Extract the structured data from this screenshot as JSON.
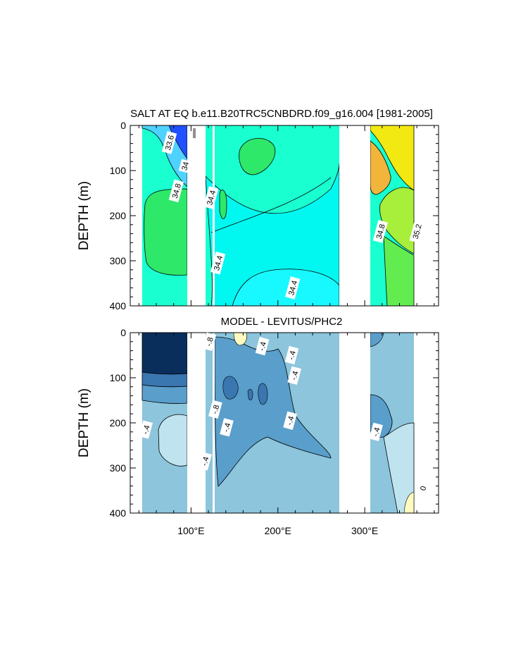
{
  "chart_data": [
    {
      "type": "heatmap",
      "title": "SALT AT EQ b.e11.B20TRC5CNBDRD.f09_g16.004 [1981-2005]",
      "xlabel": "",
      "ylabel": "DEPTH (m)",
      "xlim": [
        30,
        385
      ],
      "ylim": [
        400,
        0
      ],
      "y_reversed": true,
      "xticks": [
        {
          "value": 100,
          "label": "100°E"
        },
        {
          "value": 200,
          "label": "200°E"
        },
        {
          "value": 300,
          "label": "300°E"
        }
      ],
      "yticks": [
        0,
        100,
        200,
        300,
        400
      ],
      "grid": false,
      "land_gaps_lon": [
        [
          98,
          118
        ],
        [
          278,
          313
        ]
      ],
      "contour_labels": [
        {
          "text": "33.6",
          "lon": 75,
          "depth": 38
        },
        {
          "text": "34",
          "lon": 93,
          "depth": 90
        },
        {
          "text": "34.8",
          "lon": 83,
          "depth": 145
        },
        {
          "text": "34.4",
          "lon": 123,
          "depth": 160
        },
        {
          "text": "34.4",
          "lon": 131,
          "depth": 305
        },
        {
          "text": "34.4",
          "lon": 217,
          "depth": 360
        },
        {
          "text": "34.8",
          "lon": 318,
          "depth": 235
        },
        {
          "text": "35.2",
          "lon": 360,
          "depth": 235
        }
      ],
      "colors": {
        "main": "#1affd0",
        "shallow_fresh": "#4fd2ff",
        "very_fresh": "#2050ff",
        "saline": "#2ee86a",
        "atlantic_high": "#f2e812",
        "atlantic_max": "#f1b53c",
        "deep": "#00f8f0"
      }
    },
    {
      "type": "heatmap",
      "title": "MODEL - LEVITUS/PHC2",
      "xlabel": "",
      "ylabel": "DEPTH (m)",
      "xlim": [
        30,
        385
      ],
      "ylim": [
        400,
        0
      ],
      "y_reversed": true,
      "xticks": [
        {
          "value": 100,
          "label": "100°E"
        },
        {
          "value": 200,
          "label": "200°E"
        },
        {
          "value": 300,
          "label": "300°E"
        }
      ],
      "yticks": [
        0,
        100,
        200,
        300,
        400
      ],
      "grid": false,
      "land_gaps_lon": [
        [
          98,
          118
        ],
        [
          278,
          313
        ]
      ],
      "contour_labels": [
        {
          "text": "-.8",
          "lon": 121,
          "depth": 20
        },
        {
          "text": "-.4",
          "lon": 182,
          "depth": 30
        },
        {
          "text": "-.4",
          "lon": 216,
          "depth": 50
        },
        {
          "text": "-.4",
          "lon": 219,
          "depth": 95
        },
        {
          "text": "-.8",
          "lon": 128,
          "depth": 170
        },
        {
          "text": "-.4",
          "lon": 141,
          "depth": 210
        },
        {
          "text": "-.4",
          "lon": 214,
          "depth": 195
        },
        {
          "text": "-.4",
          "lon": 48,
          "depth": 215
        },
        {
          "text": "-.4",
          "lon": 313,
          "depth": 220
        },
        {
          "text": "-.4",
          "lon": 116,
          "depth": 285
        },
        {
          "text": "0",
          "lon": 367,
          "depth": 345
        }
      ],
      "colors": {
        "main": "#8cc5dc",
        "mid": "#5a9ecb",
        "dark": "#3a76b0",
        "darkest": "#092e5c",
        "light": "#bfe3ef",
        "positive": "#fffac0"
      }
    }
  ]
}
